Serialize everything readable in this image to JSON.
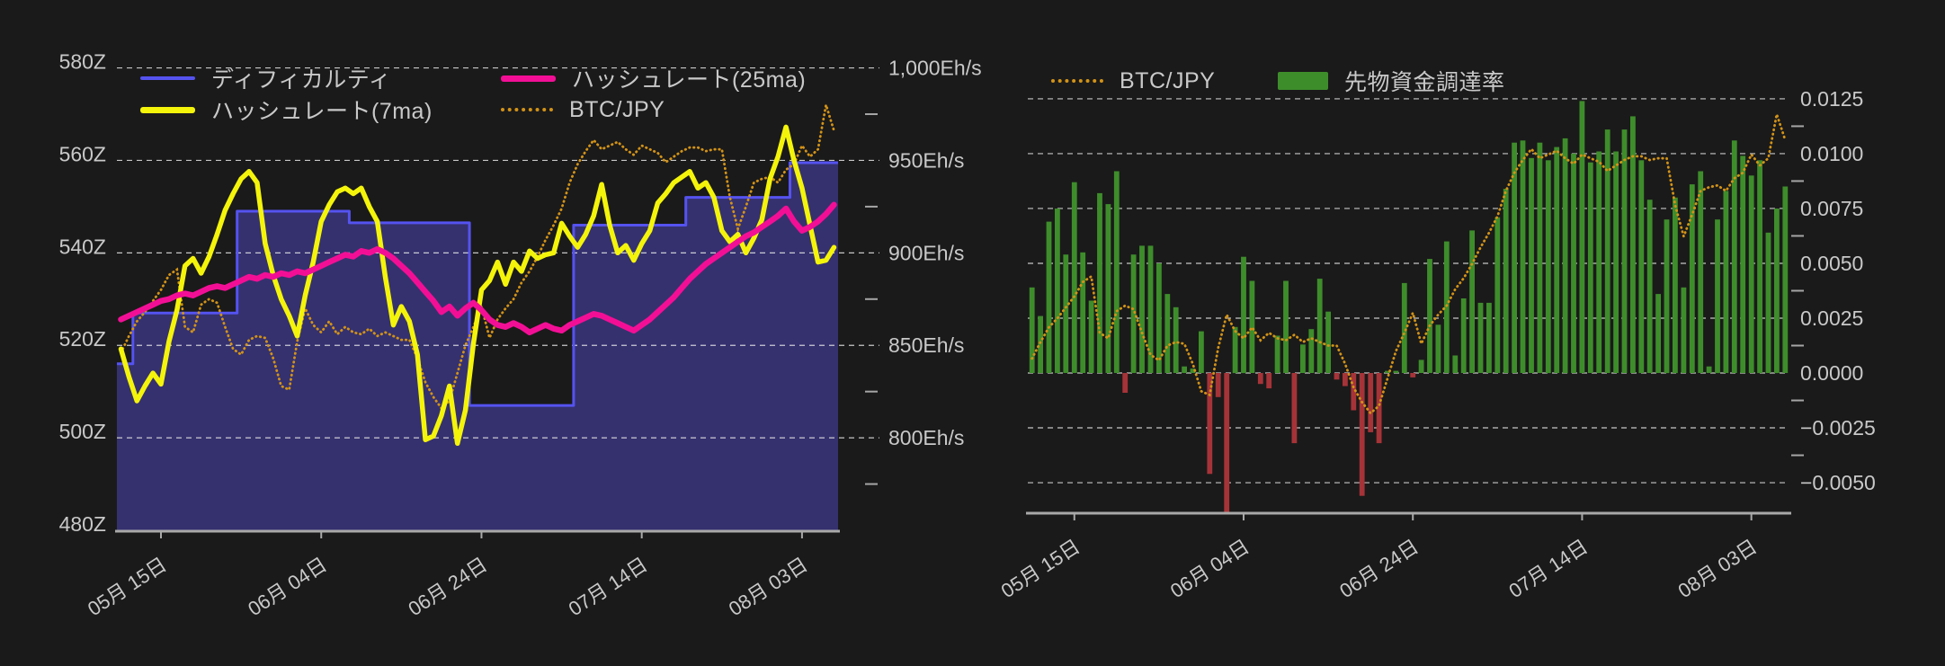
{
  "app": {
    "background": "#1a1a1a",
    "text_color": "#c9c9c9",
    "gridline_color": "#e6e6e6",
    "axis_line_color": "#a9a9a9"
  },
  "chart_data": [
    {
      "type": "line",
      "id": "difficulty-hashrate-chart",
      "title": "",
      "xlabel": "",
      "ylabel": "",
      "legend_position": "top",
      "legend": [
        {
          "label": "ディフィカルティ",
          "color": "#5553f0",
          "swatch": "line-thin"
        },
        {
          "label": "ハッシュレート(25ma)",
          "color": "#f20f96",
          "swatch": "line-thick"
        },
        {
          "label": "ハッシュレート(7ma)",
          "color": "#f4f40b",
          "swatch": "line-thick"
        },
        {
          "label": "BTC/JPY",
          "color": "#d39317",
          "swatch": "dotted"
        }
      ],
      "n_days": 90,
      "x_tick_labels": [
        "05月 15日",
        "06月 04日",
        "06月 24日",
        "07月 14日",
        "08月 03日"
      ],
      "x_tick_days": [
        5,
        25,
        45,
        65,
        85
      ],
      "axis_left": {
        "range": [
          480,
          584
        ],
        "ticks": [
          {
            "value": 480,
            "label": "480Z"
          },
          {
            "value": 500,
            "label": "500Z"
          },
          {
            "value": 520,
            "label": "520Z"
          },
          {
            "value": 540,
            "label": "540Z"
          },
          {
            "value": 560,
            "label": "560Z"
          },
          {
            "value": 580,
            "label": "580Z"
          }
        ]
      },
      "axis_right": {
        "range": [
          750,
          1010
        ],
        "ticks": [
          {
            "value": 800,
            "label": "800Eh/s"
          },
          {
            "value": 850,
            "label": "850Eh/s"
          },
          {
            "value": 900,
            "label": "900Eh/s"
          },
          {
            "value": 950,
            "label": "950Eh/s"
          },
          {
            "value": 1000,
            "label": "1,000Eh/s"
          }
        ]
      },
      "series": [
        {
          "name": "ディフィカルティ",
          "type": "step_area",
          "axis": "left",
          "color": "#5553f0",
          "fill": "#35316f",
          "width": 3,
          "values": [
            516,
            516,
            527,
            527,
            527,
            527,
            527,
            527,
            527,
            527,
            527,
            527,
            527,
            527,
            527,
            549,
            549,
            549,
            549,
            549,
            549,
            549,
            549,
            549,
            549,
            549,
            549,
            549,
            549,
            546.5,
            546.5,
            546.5,
            546.5,
            546.5,
            546.5,
            546.5,
            546.5,
            546.5,
            546.5,
            546.5,
            546.5,
            546.5,
            546.5,
            546.5,
            507,
            507,
            507,
            507,
            507,
            507,
            507,
            507,
            507,
            507,
            507,
            507,
            507,
            546,
            546,
            546,
            546,
            546,
            546,
            546,
            546,
            546,
            546,
            546,
            546,
            546,
            546,
            552,
            552,
            552,
            552,
            552,
            552,
            552,
            552,
            552,
            552,
            552,
            552,
            552,
            559.5,
            559.5,
            559.5,
            559.5,
            559.5,
            559.5
          ]
        },
        {
          "name": "BTC/JPY",
          "type": "dotted",
          "axis": "right",
          "color": "#d39317",
          "width": 2.8,
          "values": [
            846,
            855,
            863,
            868,
            874,
            880,
            888,
            891,
            860,
            857,
            872,
            875,
            873,
            860,
            848,
            845,
            853,
            855,
            854,
            843,
            828,
            826,
            852,
            870,
            861,
            857,
            863,
            856,
            860,
            857,
            856,
            859,
            855,
            857,
            855,
            853,
            853,
            843,
            830,
            822,
            816,
            820,
            835,
            850,
            860,
            871,
            854,
            864,
            870,
            875,
            884,
            890,
            898,
            907,
            915,
            924,
            938,
            948,
            955,
            961,
            956,
            958,
            960,
            956,
            953,
            958,
            956,
            954,
            949,
            952,
            955,
            957,
            957,
            955,
            956,
            956,
            930,
            913,
            925,
            938,
            940,
            941,
            938,
            945,
            948,
            958,
            952,
            956,
            980,
            966
          ]
        },
        {
          "name": "ハッシュレート(7ma)",
          "type": "line",
          "axis": "right",
          "color": "#f4f40b",
          "width": 5.5,
          "values": [
            848,
            833,
            820,
            828,
            835,
            829,
            852,
            869,
            893,
            897,
            889,
            898,
            910,
            923,
            932,
            940,
            944,
            938,
            905,
            888,
            875,
            866,
            855,
            877,
            895,
            917,
            926,
            933,
            935,
            932,
            935,
            925,
            917,
            887,
            861,
            871,
            863,
            845,
            799,
            801,
            812,
            828,
            797,
            815,
            851,
            880,
            885,
            895,
            883,
            895,
            890,
            901,
            897,
            899,
            900,
            916,
            909,
            903,
            910,
            920,
            937,
            915,
            900,
            904,
            896,
            905,
            912,
            927,
            932,
            938,
            941,
            944,
            935,
            938,
            930,
            912,
            906,
            910,
            900,
            908,
            918,
            940,
            952,
            968,
            950,
            935,
            915,
            895,
            896,
            903
          ]
        },
        {
          "name": "ハッシュレート(25ma)",
          "type": "line",
          "axis": "right",
          "color": "#f20f96",
          "width": 6.5,
          "values": [
            864,
            866,
            868,
            870,
            872,
            874,
            875,
            877,
            878,
            877,
            879,
            881,
            882,
            881,
            883,
            885,
            887,
            886,
            888,
            887,
            889,
            888,
            890,
            889,
            891,
            893,
            895,
            897,
            899,
            898,
            901,
            900,
            902,
            900,
            897,
            893,
            889,
            884,
            879,
            874,
            868,
            871,
            866,
            870,
            873,
            869,
            864,
            861,
            860,
            862,
            860,
            857,
            859,
            861,
            859,
            858,
            861,
            863,
            865,
            867,
            866,
            864,
            862,
            860,
            858,
            861,
            864,
            868,
            872,
            876,
            881,
            886,
            890,
            894,
            897,
            900,
            903,
            906,
            909,
            911,
            914,
            917,
            920,
            924,
            917,
            912,
            914,
            917,
            921,
            926
          ]
        }
      ]
    },
    {
      "type": "bar",
      "id": "funding-rate-chart",
      "title": "",
      "xlabel": "",
      "ylabel": "",
      "legend_position": "top",
      "legend": [
        {
          "label": "BTC/JPY",
          "color": "#d39317",
          "swatch": "dotted"
        },
        {
          "label": "先物資金調達率",
          "color": "#3e8d2b",
          "swatch": "rect"
        }
      ],
      "n_days": 90,
      "x_tick_labels": [
        "05月 15日",
        "06月 04日",
        "06月 24日",
        "07月 14日",
        "08月 03日"
      ],
      "x_tick_days": [
        5,
        25,
        45,
        65,
        85
      ],
      "axis_right": {
        "range": [
          -0.00635,
          0.01475
        ],
        "ticks": [
          {
            "value": -0.005,
            "label": "−0.0050"
          },
          {
            "value": -0.0025,
            "label": "−0.0025"
          },
          {
            "value": 0.0,
            "label": "0.0000"
          },
          {
            "value": 0.0025,
            "label": "0.0025"
          },
          {
            "value": 0.005,
            "label": "0.0050"
          },
          {
            "value": 0.0075,
            "label": "0.0075"
          },
          {
            "value": 0.01,
            "label": "0.0100"
          },
          {
            "value": 0.0125,
            "label": "0.0125"
          }
        ]
      },
      "series": [
        {
          "name": "先物資金調達率",
          "type": "bar",
          "color_positive": "#3e8d2b",
          "color_negative": "#a63338",
          "values": [
            0.0039,
            0.0026,
            0.0069,
            0.0075,
            0.0054,
            0.0087,
            0.0055,
            0.0033,
            0.0082,
            0.0077,
            0.0092,
            -0.0009,
            0.0054,
            0.0058,
            0.0058,
            0.005,
            0.0036,
            0.003,
            0.0003,
            0.0002,
            0.0019,
            -0.0046,
            -0.0011,
            -0.0064,
            0.0021,
            0.0053,
            0.0042,
            -0.0005,
            -0.0007,
            0.0017,
            0.0042,
            -0.0032,
            0.0013,
            0.002,
            0.0043,
            0.0028,
            -0.0003,
            -0.0006,
            -0.0017,
            -0.0056,
            -0.0027,
            -0.0032,
            0.0001,
            0.0001,
            0.0041,
            -0.0002,
            0.0006,
            0.0052,
            0.0022,
            0.006,
            0.0008,
            0.0034,
            0.0065,
            0.0032,
            0.0032,
            0.0071,
            0.0084,
            0.0105,
            0.0106,
            0.0098,
            0.0105,
            0.0097,
            0.0103,
            0.0107,
            0.01,
            0.0124,
            0.0096,
            0.0101,
            0.0111,
            0.0101,
            0.0111,
            0.0117,
            0.0097,
            0.0079,
            0.0036,
            0.007,
            0.008,
            0.0039,
            0.0086,
            0.0092,
            0.0003,
            0.007,
            0.0083,
            0.0106,
            0.0099,
            0.009,
            0.0097,
            0.0064,
            0.0075,
            0.0085
          ]
        },
        {
          "name": "BTC/JPY",
          "type": "dotted",
          "color": "#d39317",
          "width": 2.8,
          "values": [
            0.00066,
            0.00141,
            0.00208,
            0.00249,
            0.00299,
            0.00349,
            0.00415,
            0.0044,
            0.00183,
            0.00158,
            0.00282,
            0.00307,
            0.00291,
            0.00183,
            0.00083,
            0.00058,
            0.00125,
            0.00141,
            0.00133,
            0.00042,
            -0.00083,
            -0.001,
            0.00116,
            0.00266,
            0.00191,
            0.00158,
            0.00208,
            0.00149,
            0.00183,
            0.00158,
            0.00149,
            0.00174,
            0.00141,
            0.00158,
            0.00141,
            0.00125,
            0.00125,
            0.00042,
            -0.00066,
            -0.00133,
            -0.00183,
            -0.00149,
            -0.00025,
            0.001,
            0.00183,
            0.00274,
            0.00133,
            0.00216,
            0.00266,
            0.00307,
            0.00382,
            0.00432,
            0.00498,
            0.00573,
            0.00639,
            0.00714,
            0.0083,
            0.00913,
            0.00971,
            0.01021,
            0.00979,
            0.00996,
            0.01013,
            0.00979,
            0.00954,
            0.00996,
            0.00979,
            0.00963,
            0.00921,
            0.00946,
            0.00971,
            0.00988,
            0.00988,
            0.00971,
            0.00979,
            0.00979,
            0.00764,
            0.00623,
            0.00722,
            0.0083,
            0.00847,
            0.00855,
            0.0083,
            0.00888,
            0.00913,
            0.00996,
            0.00946,
            0.00979,
            0.01179,
            0.01062
          ]
        }
      ]
    }
  ]
}
